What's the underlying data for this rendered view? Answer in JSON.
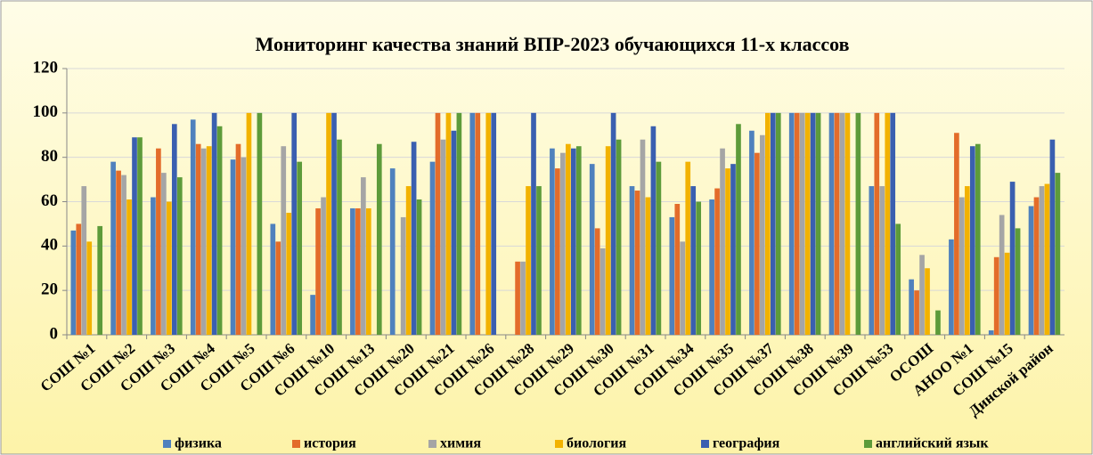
{
  "chart_data": {
    "type": "bar",
    "title": "Мониторинг качества знаний ВПР-2023 обучающихся 11-х классов",
    "categories": [
      "СОШ №1",
      "СОШ №2",
      "СОШ №3",
      "СОШ №4",
      "СОШ №5",
      "СОШ №6",
      "СОШ №10",
      "СОШ №13",
      "СОШ №20",
      "СОШ №21",
      "СОШ №26",
      "СОШ №28",
      "СОШ №29",
      "СОШ №30",
      "СОШ №31",
      "СОШ №34",
      "СОШ №35",
      "СОШ №37",
      "СОШ №38",
      "СОШ №39",
      "СОШ №53",
      "ОСОШ",
      "АНОО №1",
      "СОШ №15",
      "Динской район"
    ],
    "series": [
      {
        "name": "физика",
        "color": "#4f81bd",
        "values": [
          47,
          78,
          62,
          97,
          79,
          50,
          18,
          57,
          75,
          78,
          100,
          null,
          84,
          77,
          67,
          53,
          61,
          92,
          100,
          100,
          67,
          25,
          43,
          2,
          58
        ]
      },
      {
        "name": "история",
        "color": "#e36c2a",
        "values": [
          50,
          74,
          84,
          86,
          86,
          42,
          57,
          57,
          null,
          100,
          100,
          33,
          75,
          48,
          65,
          59,
          66,
          82,
          100,
          100,
          100,
          20,
          91,
          35,
          62
        ]
      },
      {
        "name": "химия",
        "color": "#a5a5a5",
        "values": [
          67,
          72,
          73,
          84,
          80,
          85,
          62,
          71,
          53,
          88,
          null,
          33,
          82,
          39,
          88,
          42,
          84,
          90,
          100,
          100,
          67,
          36,
          62,
          54,
          67
        ]
      },
      {
        "name": "биология",
        "color": "#f2b200",
        "values": [
          42,
          61,
          60,
          85,
          100,
          55,
          100,
          57,
          67,
          100,
          100,
          67,
          86,
          85,
          62,
          78,
          75,
          100,
          100,
          100,
          100,
          30,
          67,
          37,
          68
        ]
      },
      {
        "name": "география",
        "color": "#3a5fb0",
        "values": [
          null,
          89,
          95,
          100,
          null,
          100,
          100,
          null,
          87,
          92,
          100,
          100,
          84,
          100,
          94,
          67,
          77,
          100,
          100,
          null,
          100,
          null,
          85,
          69,
          88
        ]
      },
      {
        "name": "английский язык",
        "color": "#5d9b3a",
        "values": [
          49,
          89,
          71,
          94,
          100,
          78,
          88,
          86,
          61,
          100,
          null,
          67,
          85,
          88,
          78,
          60,
          95,
          100,
          100,
          100,
          50,
          11,
          86,
          48,
          73
        ]
      }
    ],
    "ylim": [
      0,
      120
    ],
    "yticks": [
      0,
      20,
      40,
      60,
      80,
      100,
      120
    ],
    "grid": true,
    "legend": "bottom"
  }
}
